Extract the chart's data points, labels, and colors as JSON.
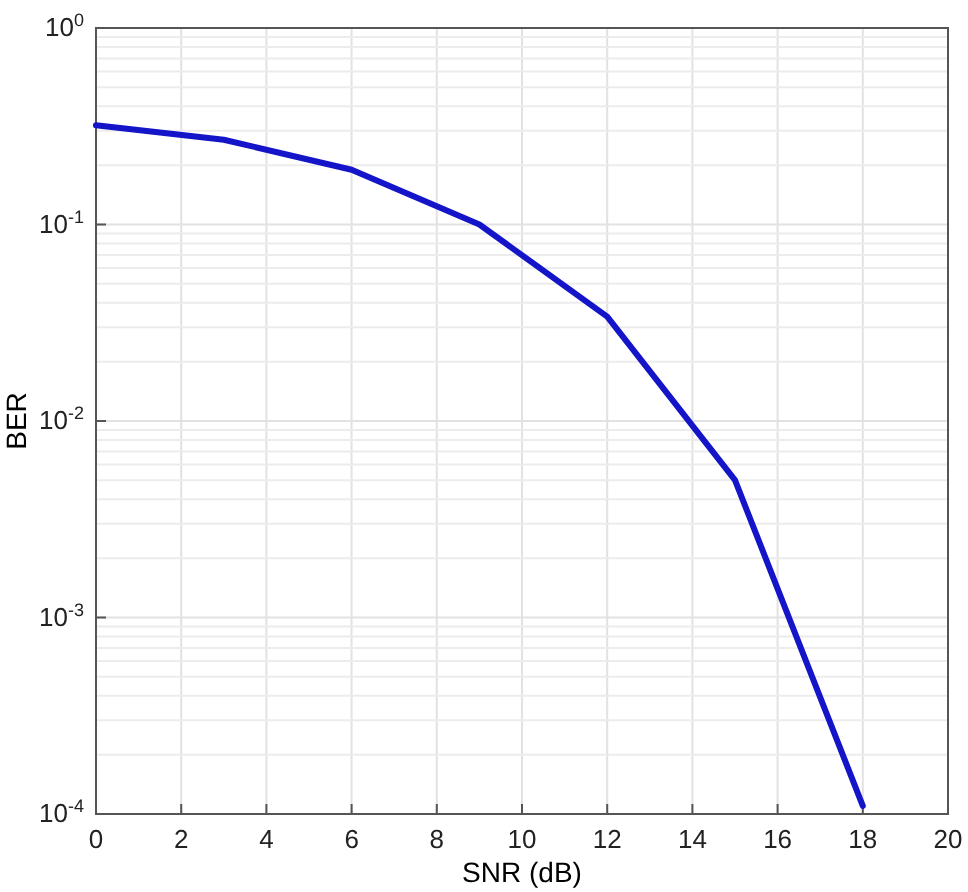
{
  "chart_data": {
    "type": "line",
    "xlabel": "SNR (dB)",
    "ylabel": "BER",
    "log": "y",
    "grid": true,
    "line_style": "solid",
    "marker": "none",
    "x": [
      0,
      3,
      6,
      9,
      12,
      15,
      18
    ],
    "series": [
      {
        "color": "#1414c8",
        "values": [
          0.32,
          0.27,
          0.19,
          0.1,
          0.034,
          0.005,
          0.00011
        ]
      }
    ],
    "xlim": [
      0,
      20
    ],
    "xticks": [
      0,
      2,
      4,
      6,
      8,
      10,
      12,
      14,
      16,
      18,
      20
    ],
    "ylim": [
      0.0001,
      1
    ],
    "yticks": [
      {
        "value": 0.0001,
        "label": "10$^{-4}$"
      },
      {
        "value": 0.001,
        "label": "10$^{-3}$"
      },
      {
        "value": 0.01,
        "label": "10$^{-2}$"
      },
      {
        "value": 0.1,
        "label": "10$^{-1}$"
      },
      {
        "value": 1,
        "label": "10$^{0}$"
      }
    ]
  }
}
